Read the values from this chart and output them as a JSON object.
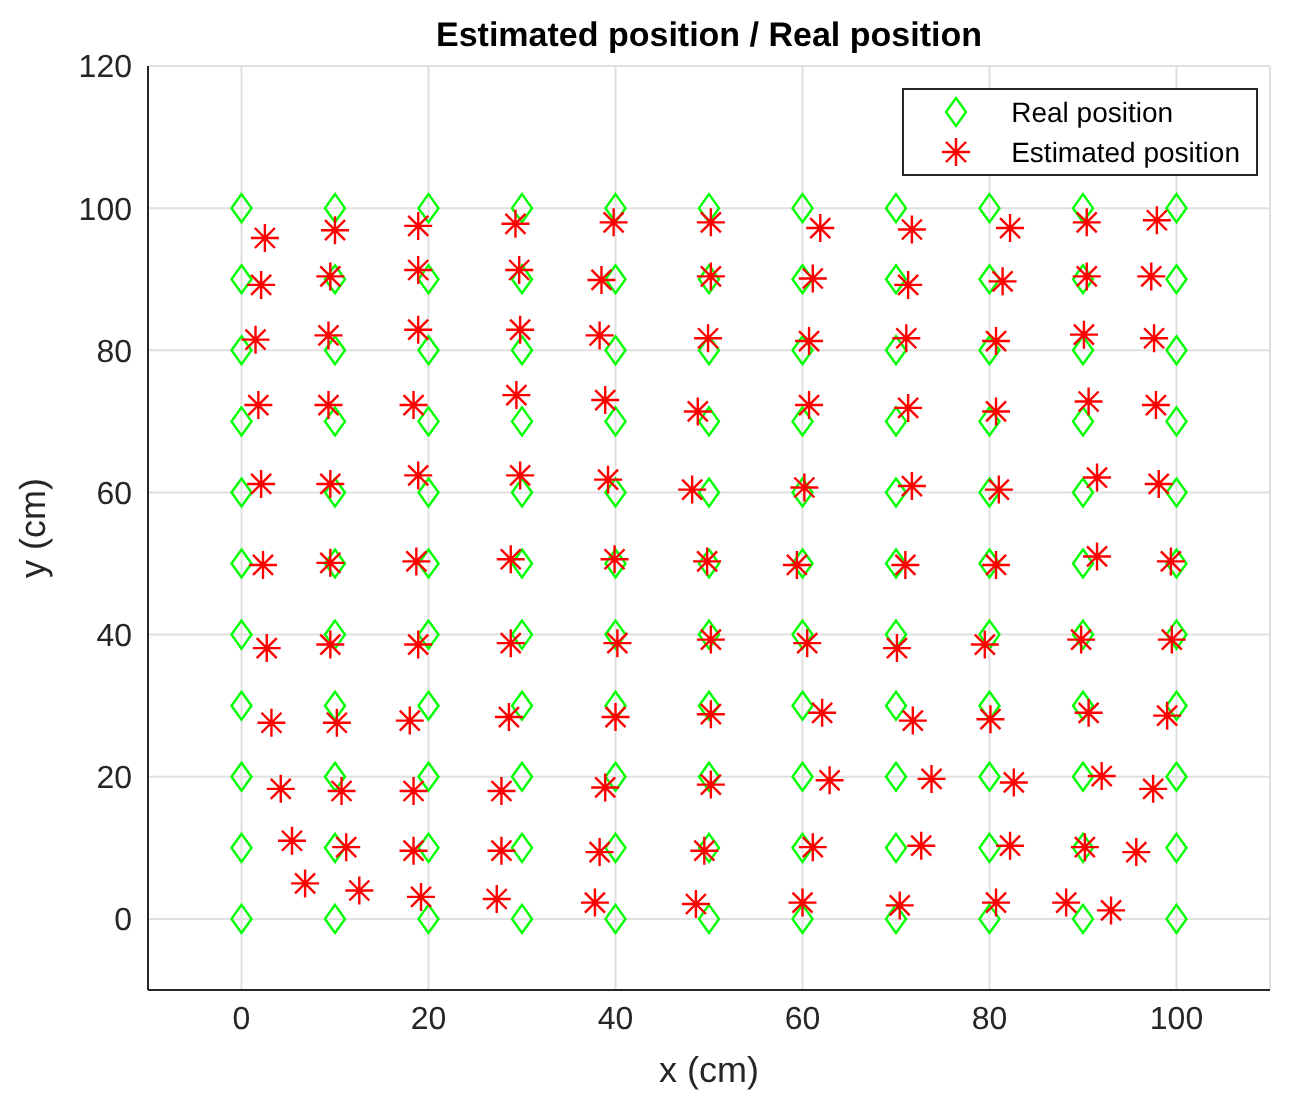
{
  "chart_data": {
    "type": "scatter",
    "title": "Estimated position / Real position",
    "xlabel": "x (cm)",
    "ylabel": "y (cm)",
    "xlim": [
      -10,
      110
    ],
    "xticks": [
      0,
      20,
      40,
      60,
      80,
      100
    ],
    "ylim": [
      -10,
      120
    ],
    "yticks": [
      0,
      20,
      40,
      60,
      80,
      100,
      120
    ],
    "grid": true,
    "legend": "top right",
    "series": [
      {
        "name": "Real position",
        "color": "#00ff00",
        "marker": "diamond",
        "x": [
          0,
          10,
          20,
          30,
          40,
          50,
          60,
          70,
          80,
          90,
          100,
          0,
          10,
          20,
          30,
          40,
          50,
          60,
          70,
          80,
          90,
          100,
          0,
          10,
          20,
          30,
          40,
          50,
          60,
          70,
          80,
          90,
          100,
          0,
          10,
          20,
          30,
          40,
          50,
          60,
          70,
          80,
          90,
          100,
          0,
          10,
          20,
          30,
          40,
          50,
          60,
          70,
          80,
          90,
          100,
          0,
          10,
          20,
          30,
          40,
          50,
          60,
          70,
          80,
          90,
          100,
          0,
          10,
          20,
          30,
          40,
          50,
          60,
          70,
          80,
          90,
          100,
          0,
          10,
          20,
          30,
          40,
          50,
          60,
          70,
          80,
          90,
          100,
          0,
          10,
          20,
          30,
          40,
          50,
          60,
          70,
          80,
          90,
          100,
          0,
          10,
          20,
          30,
          40,
          50,
          60,
          70,
          80,
          90,
          100,
          0,
          10,
          20,
          30,
          40,
          50,
          60,
          70,
          80,
          90,
          100
        ],
        "values": [
          100,
          100,
          100,
          100,
          100,
          100,
          100,
          100,
          100,
          100,
          100,
          90,
          90,
          90,
          90,
          90,
          90,
          90,
          90,
          90,
          90,
          90,
          80,
          80,
          80,
          80,
          80,
          80,
          80,
          80,
          80,
          80,
          80,
          70,
          70,
          70,
          70,
          70,
          70,
          70,
          70,
          70,
          70,
          70,
          60,
          60,
          60,
          60,
          60,
          60,
          60,
          60,
          60,
          60,
          60,
          50,
          50,
          50,
          50,
          50,
          50,
          50,
          50,
          50,
          50,
          50,
          40,
          40,
          40,
          40,
          40,
          40,
          40,
          40,
          40,
          40,
          40,
          30,
          30,
          30,
          30,
          30,
          30,
          30,
          30,
          30,
          30,
          30,
          20,
          20,
          20,
          20,
          20,
          20,
          20,
          20,
          20,
          20,
          20,
          10,
          10,
          10,
          10,
          10,
          10,
          10,
          10,
          10,
          10,
          10,
          0,
          0,
          0,
          0,
          0,
          0,
          0,
          0,
          0,
          0,
          0
        ]
      },
      {
        "name": "Estimated position",
        "color": "#ff0000",
        "marker": "cross",
        "x": [
          2.5,
          10.0,
          18.9,
          29.3,
          39.8,
          50.2,
          61.9,
          71.7,
          82.2,
          90.4,
          97.9,
          2.1,
          9.5,
          18.9,
          29.7,
          38.5,
          50.2,
          61.1,
          71.3,
          81.4,
          90.4,
          97.3,
          1.5,
          9.3,
          18.9,
          29.8,
          38.3,
          49.9,
          60.7,
          71.1,
          80.7,
          90.1,
          97.6,
          1.8,
          9.3,
          18.4,
          29.4,
          38.9,
          48.8,
          60.7,
          71.3,
          80.7,
          90.6,
          97.8,
          2.1,
          9.5,
          18.9,
          29.8,
          39.2,
          48.2,
          60.2,
          71.7,
          81.0,
          91.5,
          98.1,
          2.3,
          9.5,
          18.7,
          28.8,
          39.9,
          49.8,
          59.4,
          71.0,
          80.7,
          91.5,
          99.4,
          2.7,
          9.5,
          18.9,
          28.8,
          40.2,
          50.2,
          60.5,
          70.1,
          79.5,
          89.8,
          99.5,
          3.2,
          10.2,
          18.0,
          28.6,
          40.0,
          50.2,
          62.1,
          71.8,
          80.1,
          90.6,
          99.0,
          4.2,
          10.7,
          18.4,
          27.8,
          38.9,
          50.2,
          62.9,
          73.8,
          82.6,
          92.0,
          97.5,
          5.4,
          11.2,
          18.4,
          27.8,
          38.3,
          49.5,
          61.1,
          72.7,
          82.2,
          90.2,
          95.7,
          6.8,
          12.6,
          19.2,
          27.3,
          37.8,
          48.6,
          60.0,
          70.4,
          80.7,
          88.2,
          93.0
        ],
        "values": [
          95.8,
          96.9,
          97.5,
          97.8,
          98.0,
          98.0,
          97.2,
          97.0,
          97.2,
          98.0,
          98.3,
          89.2,
          90.4,
          91.3,
          91.3,
          89.9,
          90.4,
          90.1,
          89.2,
          89.7,
          90.4,
          90.4,
          81.5,
          82.1,
          82.9,
          82.9,
          82.1,
          81.7,
          81.3,
          81.7,
          81.3,
          82.2,
          81.7,
          72.3,
          72.3,
          72.3,
          73.7,
          73.0,
          71.4,
          72.3,
          71.9,
          71.4,
          72.8,
          72.3,
          61.2,
          61.2,
          62.4,
          62.4,
          61.8,
          60.4,
          60.7,
          60.9,
          60.4,
          62.1,
          61.2,
          49.8,
          50.1,
          50.3,
          50.6,
          50.6,
          50.3,
          49.8,
          49.8,
          49.8,
          51.0,
          50.3,
          38.1,
          38.6,
          38.6,
          38.8,
          38.8,
          39.3,
          38.8,
          38.1,
          38.6,
          39.3,
          39.3,
          27.6,
          27.6,
          27.9,
          28.4,
          28.4,
          28.8,
          29.0,
          27.9,
          28.1,
          29.0,
          28.6,
          18.3,
          18.0,
          18.0,
          18.0,
          18.5,
          18.9,
          19.5,
          19.7,
          19.2,
          20.1,
          18.3,
          11.0,
          10.1,
          9.6,
          9.6,
          9.4,
          9.6,
          10.1,
          10.3,
          10.3,
          10.1,
          9.4,
          5.0,
          4.0,
          3.1,
          2.8,
          2.3,
          2.1,
          2.3,
          1.9,
          2.3,
          2.3,
          1.2
        ]
      }
    ]
  }
}
